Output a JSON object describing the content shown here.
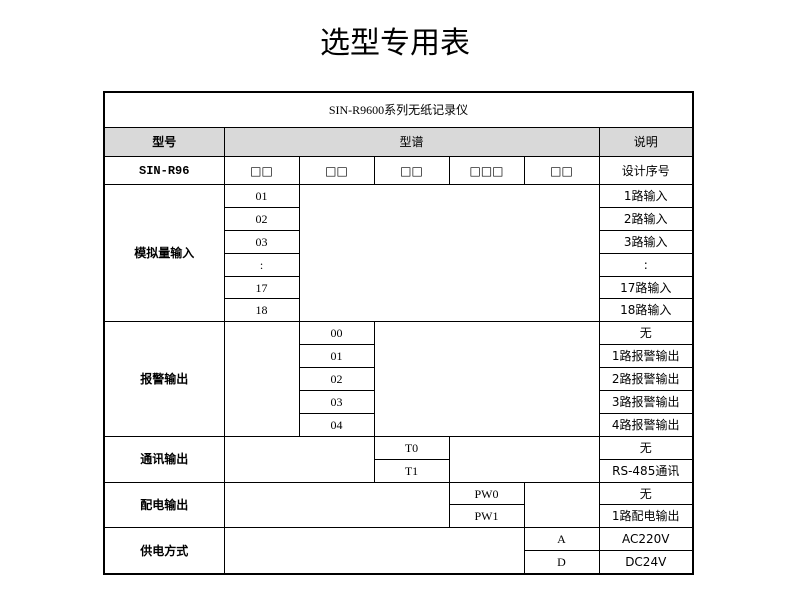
{
  "page_title": "选型专用表",
  "table": {
    "title": "SIN-R9600系列无纸记录仪",
    "header": {
      "model": "型号",
      "spectrum": "型谱",
      "description": "说明"
    },
    "model_row": {
      "model": "SIN-R96",
      "slots": [
        "□□",
        "□□",
        "□□",
        "□□□",
        "□□"
      ],
      "description": "设计序号"
    },
    "groups": [
      {
        "label": "模拟量输入",
        "options": [
          {
            "code": "01",
            "desc": "1路输入"
          },
          {
            "code": "02",
            "desc": "2路输入"
          },
          {
            "code": "03",
            "desc": "3路输入"
          },
          {
            "code": ":",
            "desc": ":"
          },
          {
            "code": "17",
            "desc": "17路输入"
          },
          {
            "code": "18",
            "desc": "18路输入"
          }
        ]
      },
      {
        "label": "报警输出",
        "options": [
          {
            "code": "00",
            "desc": "无"
          },
          {
            "code": "01",
            "desc": "1路报警输出"
          },
          {
            "code": "02",
            "desc": "2路报警输出"
          },
          {
            "code": "03",
            "desc": "3路报警输出"
          },
          {
            "code": "04",
            "desc": "4路报警输出"
          }
        ]
      },
      {
        "label": "通讯输出",
        "options": [
          {
            "code": "T0",
            "desc": "无"
          },
          {
            "code": "T1",
            "desc": "RS-485通讯"
          }
        ]
      },
      {
        "label": "配电输出",
        "options": [
          {
            "code": "PW0",
            "desc": "无"
          },
          {
            "code": "PW1",
            "desc": "1路配电输出"
          }
        ]
      },
      {
        "label": "供电方式",
        "options": [
          {
            "code": "A",
            "desc": "AC220V"
          },
          {
            "code": "D",
            "desc": "DC24V"
          }
        ]
      }
    ]
  }
}
